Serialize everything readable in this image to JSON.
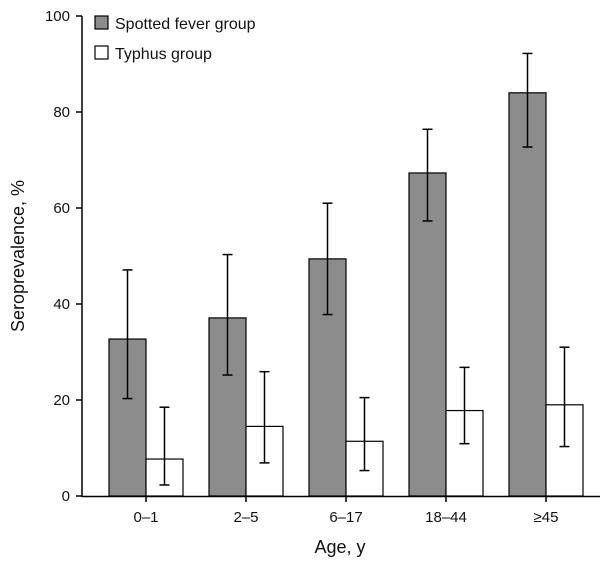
{
  "chart_data": {
    "type": "bar",
    "title": "",
    "xlabel": "Age, y",
    "ylabel": "Seroprevalence, %",
    "ylim": [
      0,
      100
    ],
    "yticks": [
      0,
      20,
      40,
      60,
      80,
      100
    ],
    "categories": [
      "0–1",
      "2–5",
      "6–17",
      "18–44",
      "≥45"
    ],
    "series": [
      {
        "name": "Spotted fever group",
        "color": "#8c8c8c",
        "values": [
          32.7,
          37.1,
          49.4,
          67.3,
          84.0
        ],
        "error_low": [
          20.3,
          25.2,
          37.8,
          57.3,
          72.7
        ],
        "error_high": [
          47.1,
          50.3,
          61.0,
          76.4,
          92.2
        ]
      },
      {
        "name": "Typhus group",
        "color": "#ffffff",
        "values": [
          7.7,
          14.5,
          11.4,
          17.8,
          19.0
        ],
        "error_low": [
          2.3,
          6.9,
          5.3,
          10.9,
          10.3
        ],
        "error_high": [
          18.5,
          25.9,
          20.5,
          26.8,
          31.0
        ]
      }
    ],
    "legend_position": "top-left",
    "grid": false
  }
}
